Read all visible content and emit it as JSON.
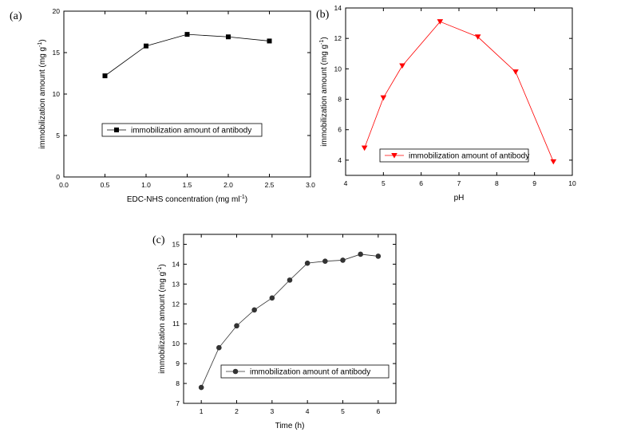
{
  "chart_data": [
    {
      "type": "line",
      "panel_label": "(a)",
      "title": "",
      "xlabel": "EDC-NHS concentration (mg ml",
      "xlabel_sup": "-1",
      "xlabel_end": ")",
      "ylabel": "immobilization amount (mg g",
      "ylabel_sup": "-1",
      "ylabel_end": ")",
      "xlim": [
        0,
        3
      ],
      "ylim": [
        0,
        20
      ],
      "xticks": [
        "0.0",
        "0.5",
        "1.0",
        "1.5",
        "2.0",
        "2.5",
        "3.0"
      ],
      "yticks": [
        "0",
        "5",
        "10",
        "15",
        "20"
      ],
      "grid": false,
      "legend_position": "middle-right",
      "series": [
        {
          "name": "immobilization amount of antibody",
          "marker": "square",
          "color": "#000000",
          "x": [
            0.5,
            1.0,
            1.5,
            2.0,
            2.5
          ],
          "y": [
            12.2,
            15.8,
            17.2,
            16.9,
            16.4
          ]
        }
      ]
    },
    {
      "type": "line",
      "panel_label": "(b)",
      "title": "",
      "xlabel": "pH",
      "xlabel_sup": "",
      "xlabel_end": "",
      "ylabel": "immobilization amount (mg g",
      "ylabel_sup": "-1",
      "ylabel_end": ")",
      "xlim": [
        4,
        10
      ],
      "ylim": [
        3,
        14
      ],
      "xticks": [
        "4",
        "5",
        "6",
        "7",
        "8",
        "9",
        "10"
      ],
      "yticks": [
        "4",
        "6",
        "8",
        "10",
        "12",
        "14"
      ],
      "grid": false,
      "legend_position": "bottom-center",
      "series": [
        {
          "name": "immobilization amount of antibody",
          "marker": "triangle-down",
          "color": "#ff0000",
          "x": [
            4.5,
            5.0,
            5.5,
            6.5,
            7.5,
            8.5,
            9.5
          ],
          "y": [
            4.8,
            8.1,
            10.2,
            13.1,
            12.1,
            9.8,
            3.9
          ]
        }
      ]
    },
    {
      "type": "line",
      "panel_label": "(c)",
      "title": "",
      "xlabel": "Time (h)",
      "xlabel_sup": "",
      "xlabel_end": "",
      "ylabel": "immobilization amount (mg g",
      "ylabel_sup": "-1",
      "ylabel_end": ")",
      "xlim": [
        0.5,
        6.5
      ],
      "ylim": [
        7,
        15.5
      ],
      "xticks": [
        "1",
        "2",
        "3",
        "4",
        "5",
        "6"
      ],
      "yticks": [
        "7",
        "8",
        "9",
        "10",
        "11",
        "12",
        "13",
        "14",
        "15"
      ],
      "grid": false,
      "legend_position": "middle-right",
      "series": [
        {
          "name": "immobilization amount of antibody",
          "marker": "circle",
          "color": "#333333",
          "x": [
            1,
            1.5,
            2,
            2.5,
            3,
            3.5,
            4,
            4.5,
            5,
            5.5,
            6
          ],
          "y": [
            7.8,
            9.8,
            10.9,
            11.7,
            12.3,
            13.2,
            14.05,
            14.15,
            14.2,
            14.5,
            14.4
          ]
        }
      ]
    }
  ]
}
